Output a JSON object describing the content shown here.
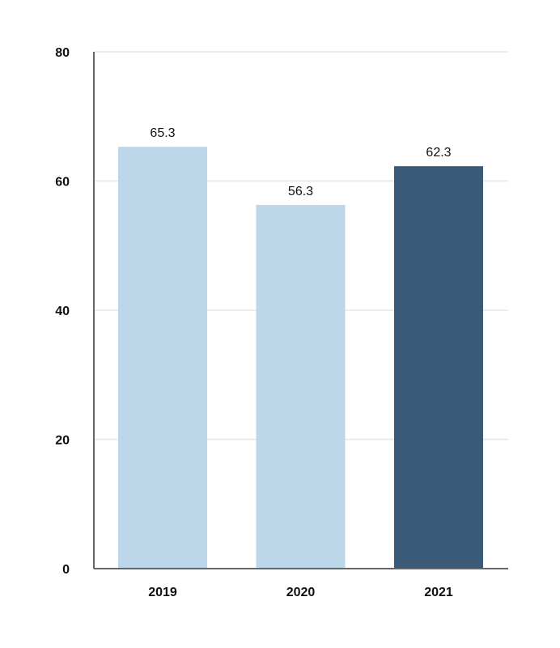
{
  "chart_data": {
    "type": "bar",
    "title": "",
    "xlabel": "",
    "ylabel": "",
    "categories": [
      "2019",
      "2020",
      "2021"
    ],
    "values": [
      65.3,
      56.3,
      62.3
    ],
    "value_labels": [
      "65.3",
      "56.3",
      "62.3"
    ],
    "ylim": [
      0,
      80
    ],
    "yticks": [
      0,
      20,
      40,
      60,
      80
    ],
    "grid": true,
    "colors": {
      "default_bar": "#bcd7e9",
      "highlight_bar": "#3b5a78",
      "grid": "#e6e6e6",
      "axis": "#666666",
      "text": "#111111"
    },
    "highlight_category": "2021"
  }
}
